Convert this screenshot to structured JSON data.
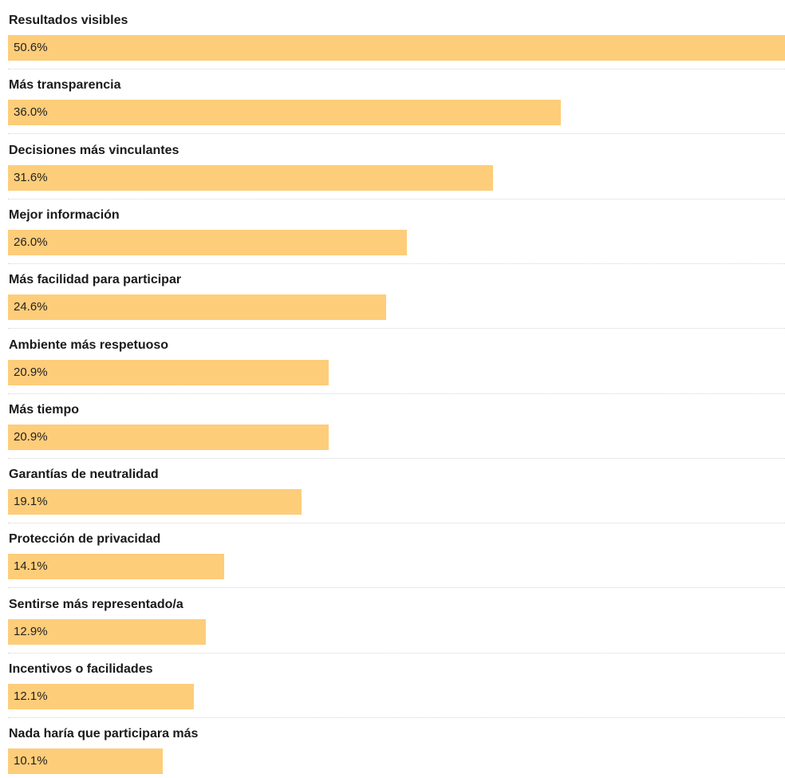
{
  "chart_data": {
    "type": "bar",
    "orientation": "horizontal",
    "categories": [
      "Resultados visibles",
      "Más transparencia",
      "Decisiones más vinculantes",
      "Mejor información",
      "Más facilidad para participar",
      "Ambiente más respetuoso",
      "Más tiempo",
      "Garantías de neutralidad",
      "Protección de privacidad",
      "Sentirse más representado/a",
      "Incentivos o facilidades",
      "Nada haría que participara más"
    ],
    "values": [
      50.6,
      36.0,
      31.6,
      26.0,
      24.6,
      20.9,
      20.9,
      19.1,
      14.1,
      12.9,
      12.1,
      10.1
    ],
    "value_labels": [
      "50.6%",
      "36.0%",
      "31.6%",
      "26.0%",
      "24.6%",
      "20.9%",
      "20.9%",
      "19.1%",
      "14.1%",
      "12.9%",
      "12.1%",
      "10.1%"
    ],
    "unit": "%",
    "bar_color": "#fdcd7a",
    "divider_color": "#d4d4d4",
    "grid": false,
    "legend": "none"
  }
}
